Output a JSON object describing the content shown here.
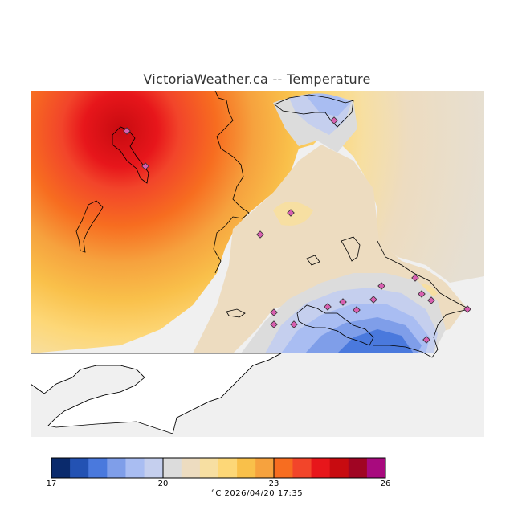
{
  "title": "VictoriaWeather.ca -- Temperature",
  "footer": "°C  2026/04/20  17:35",
  "colorbar": {
    "min": 17,
    "max": 26,
    "ticks": [
      "17",
      "20",
      "23",
      "26"
    ],
    "colors": [
      "#0a2a6c",
      "#2352b3",
      "#4a79dd",
      "#7f9ee9",
      "#a9bdf2",
      "#c5cfee",
      "#dcdcdc",
      "#eddcc0",
      "#f7dfa2",
      "#fdd777",
      "#f9c04a",
      "#f6a23e",
      "#f76d20",
      "#f2452a",
      "#e7161b",
      "#c80b10",
      "#a00523",
      "#a80a7e"
    ]
  },
  "map": {
    "background_color": "#f0f0f0",
    "land_outline_color": "#000000",
    "station_color": "#d85fb0"
  }
}
